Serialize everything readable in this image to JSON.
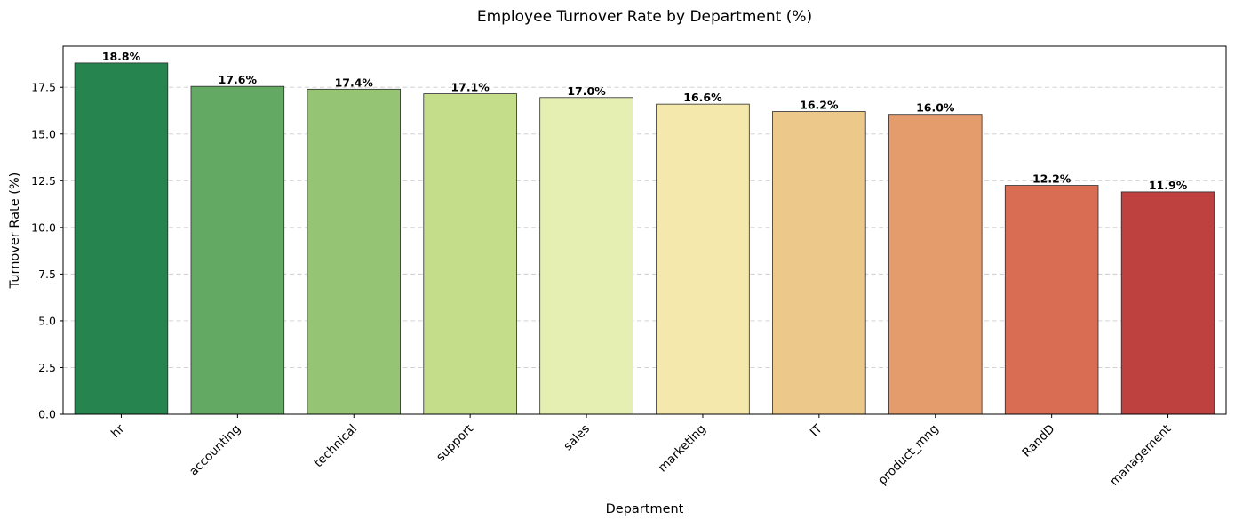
{
  "chart_data": {
    "type": "bar",
    "title": "Employee Turnover Rate by Department (%)",
    "xlabel": "Department",
    "ylabel": "Turnover Rate (%)",
    "categories": [
      "hr",
      "accounting",
      "technical",
      "support",
      "sales",
      "marketing",
      "IT",
      "product_mng",
      "RandD",
      "management"
    ],
    "values": [
      18.8,
      17.55,
      17.4,
      17.15,
      16.95,
      16.6,
      16.2,
      16.05,
      12.25,
      11.9
    ],
    "value_labels": [
      "18.8%",
      "17.6%",
      "17.4%",
      "17.1%",
      "17.0%",
      "16.6%",
      "16.2%",
      "16.0%",
      "12.2%",
      "11.9%"
    ],
    "colors": [
      "#26844f",
      "#63a964",
      "#96c475",
      "#c4dd8b",
      "#e6efb2",
      "#f5e8ad",
      "#ecc98a",
      "#e59c6c",
      "#d96d53",
      "#be4140"
    ],
    "yticks": [
      "0.0",
      "2.5",
      "5.0",
      "7.5",
      "10.0",
      "12.5",
      "15.0",
      "17.5"
    ],
    "ylim": [
      0,
      19.7
    ],
    "grid": "y-axis dashed",
    "legend": "none"
  }
}
